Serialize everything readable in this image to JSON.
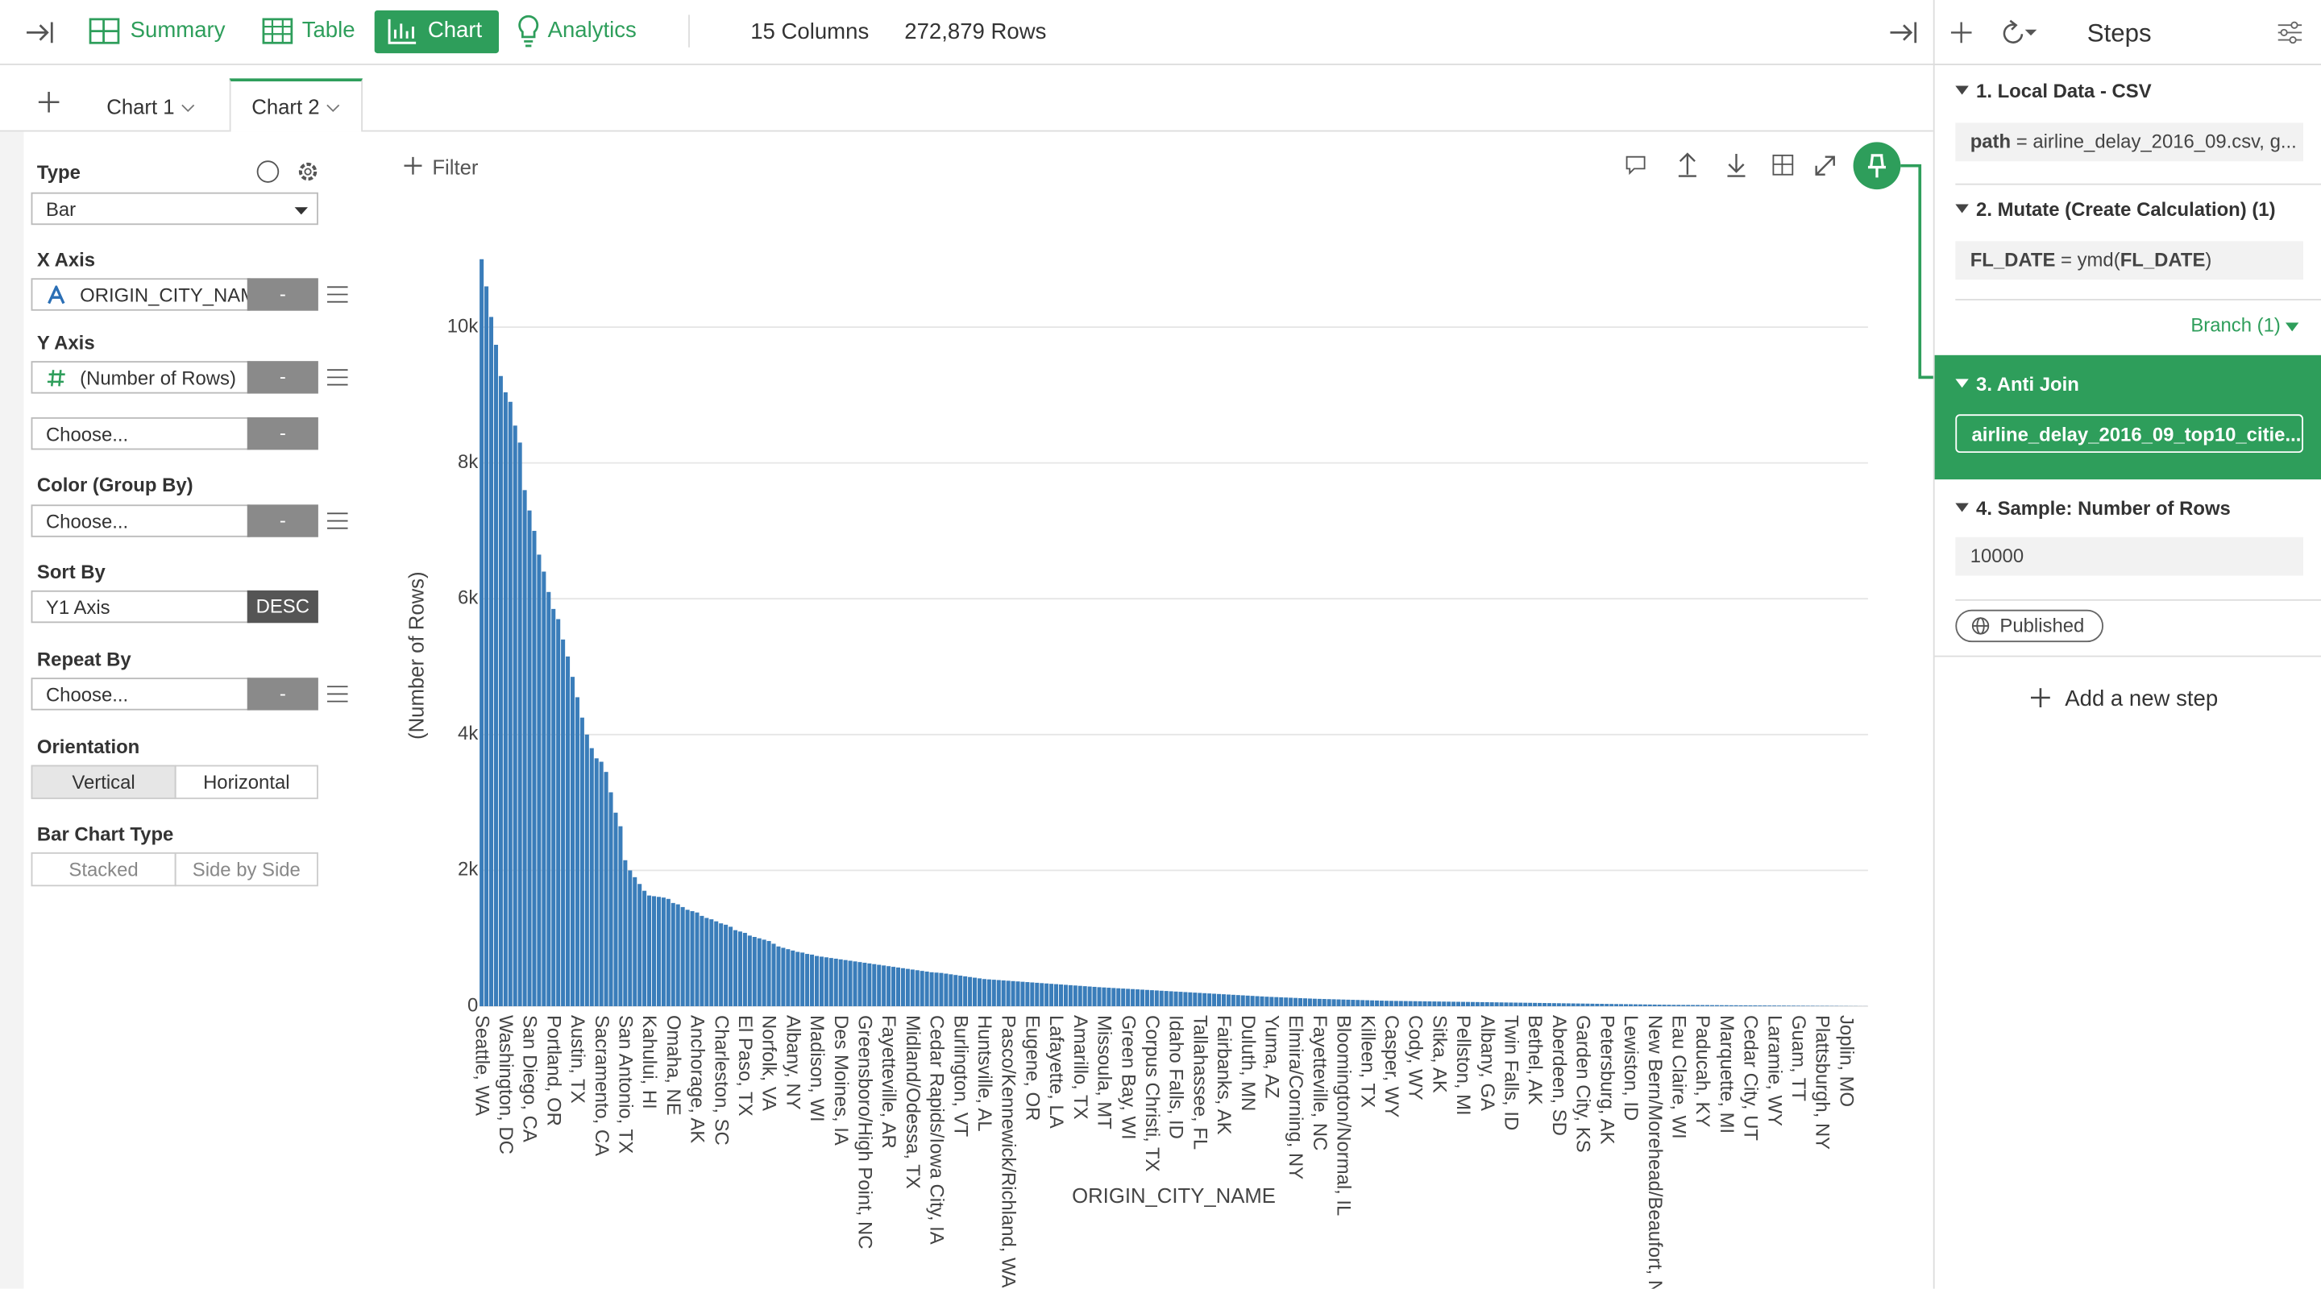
{
  "toolbar": {
    "tabs": [
      "Summary",
      "Table",
      "Chart",
      "Analytics"
    ],
    "columns": "15 Columns",
    "rows": "272,879 Rows"
  },
  "chart_tabs": [
    "Chart 1",
    "Chart 2"
  ],
  "filter": "Filter",
  "config": {
    "type_label": "Type",
    "type_value": "Bar",
    "x_axis_label": "X Axis",
    "x_axis_value": "ORIGIN_CITY_NAME",
    "y_axis_label": "Y Axis",
    "y_axis_value": "(Number of Rows)",
    "choose": "Choose...",
    "remove": "-",
    "color_label": "Color (Group By)",
    "sort_label": "Sort By",
    "sort_value": "Y1 Axis",
    "sort_order": "DESC",
    "repeat_label": "Repeat By",
    "orientation_label": "Orientation",
    "orientation_options": [
      "Vertical",
      "Horizontal"
    ],
    "bar_type_label": "Bar Chart Type",
    "bar_type_options": [
      "Stacked",
      "Side by Side"
    ]
  },
  "steps": {
    "title": "Steps",
    "items": [
      {
        "title": "1. Local Data - CSV",
        "key": "path",
        "body": " = airline_delay_2016_09.csv, g..."
      },
      {
        "title": "2. Mutate (Create Calculation) (1)",
        "key": "FL_DATE",
        "body": " = ymd(",
        "arg": "FL_DATE",
        "close": ")"
      },
      {
        "title": "3. Anti Join",
        "body": "airline_delay_2016_09_top10_citie..."
      },
      {
        "title": "4. Sample: Number of Rows",
        "body": "10000"
      }
    ],
    "branch": "Branch (1)",
    "published": "Published",
    "add_step": "Add a new step"
  },
  "chart_data": {
    "type": "bar",
    "x_label": "ORIGIN_CITY_NAME",
    "y_label": "(Number of Rows)",
    "color": "#3a7dba",
    "grid": true,
    "ylim": [
      0,
      11200
    ],
    "yticks": [
      0,
      {
        "value": 2000,
        "label": "2k"
      },
      {
        "value": 4000,
        "label": "4k"
      },
      {
        "value": 6000,
        "label": "6k"
      },
      {
        "value": 8000,
        "label": "8k"
      },
      {
        "value": 10000,
        "label": "10k"
      }
    ],
    "categories": [
      "Seattle, WA",
      null,
      null,
      null,
      null,
      "Washington, DC",
      null,
      null,
      null,
      null,
      "San Diego, CA",
      null,
      null,
      null,
      null,
      "Portland, OR",
      null,
      null,
      null,
      null,
      "Austin, TX",
      null,
      null,
      null,
      null,
      "Sacramento, CA",
      null,
      null,
      null,
      null,
      "San Antonio, TX",
      null,
      null,
      null,
      null,
      "Kahului, HI",
      null,
      null,
      null,
      null,
      "Omaha, NE",
      null,
      null,
      null,
      null,
      "Anchorage, AK",
      null,
      null,
      null,
      null,
      "Charleston, SC",
      null,
      null,
      null,
      null,
      "El Paso, TX",
      null,
      null,
      null,
      null,
      "Norfolk, VA",
      null,
      null,
      null,
      null,
      "Albany, NY",
      null,
      null,
      null,
      null,
      "Madison, WI",
      null,
      null,
      null,
      null,
      "Des Moines, IA",
      null,
      null,
      null,
      null,
      "Greensboro/High Point, NC",
      null,
      null,
      null,
      null,
      "Fayetteville, AR",
      null,
      null,
      null,
      null,
      "Midland/Odessa, TX",
      null,
      null,
      null,
      null,
      "Cedar Rapids/Iowa City, IA",
      null,
      null,
      null,
      null,
      "Burlington, VT",
      null,
      null,
      null,
      null,
      "Huntsville, AL",
      null,
      null,
      null,
      null,
      "Pasco/Kennewick/Richland, WA",
      null,
      null,
      null,
      null,
      "Eugene, OR",
      null,
      null,
      null,
      null,
      "Lafayette, LA",
      null,
      null,
      null,
      null,
      "Amarillo, TX",
      null,
      null,
      null,
      null,
      "Missoula, MT",
      null,
      null,
      null,
      null,
      "Green Bay, WI",
      null,
      null,
      null,
      null,
      "Corpus Christi, TX",
      null,
      null,
      null,
      null,
      "Idaho Falls, ID",
      null,
      null,
      null,
      null,
      "Tallahassee, FL",
      null,
      null,
      null,
      null,
      "Fairbanks, AK",
      null,
      null,
      null,
      null,
      "Duluth, MN",
      null,
      null,
      null,
      null,
      "Yuma, AZ",
      null,
      null,
      null,
      null,
      "Elmira/Corning, NY",
      null,
      null,
      null,
      null,
      "Fayetteville, NC",
      null,
      null,
      null,
      null,
      "Bloomington/Normal, IL",
      null,
      null,
      null,
      null,
      "Killeen, TX",
      null,
      null,
      null,
      null,
      "Casper, WY",
      null,
      null,
      null,
      null,
      "Cody, WY",
      null,
      null,
      null,
      null,
      "Sitka, AK",
      null,
      null,
      null,
      null,
      "Pellston, MI",
      null,
      null,
      null,
      null,
      "Albany, GA",
      null,
      null,
      null,
      null,
      "Twin Falls, ID",
      null,
      null,
      null,
      null,
      "Bethel, AK",
      null,
      null,
      null,
      null,
      "Aberdeen, SD",
      null,
      null,
      null,
      null,
      "Garden City, KS",
      null,
      null,
      null,
      null,
      "Petersburg, AK",
      null,
      null,
      null,
      null,
      "Lewiston, ID",
      null,
      null,
      null,
      null,
      "New Bern/Morehead/Beaufort, NC",
      null,
      null,
      null,
      null,
      "Eau Claire, WI",
      null,
      null,
      null,
      null,
      "Paducah, KY",
      null,
      null,
      null,
      null,
      "Marquette, MI",
      null,
      null,
      null,
      null,
      "Cedar City, UT",
      null,
      null,
      null,
      null,
      "Laramie, WY",
      null,
      null,
      null,
      null,
      "Guam, TT",
      null,
      null,
      null,
      null,
      "Plattsburgh, NY",
      null,
      null,
      null,
      null,
      "Joplin, MO",
      null,
      null,
      null,
      null
    ],
    "values": [
      11000,
      10600,
      10150,
      9740,
      9280,
      9040,
      8900,
      8550,
      8300,
      7600,
      7300,
      7000,
      6650,
      6400,
      6100,
      5850,
      5700,
      5400,
      5150,
      4850,
      4550,
      4250,
      4000,
      3800,
      3650,
      3600,
      3450,
      3150,
      2850,
      2650,
      2150,
      2000,
      1900,
      1800,
      1700,
      1630,
      1620,
      1610,
      1600,
      1580,
      1520,
      1500,
      1460,
      1420,
      1400,
      1380,
      1330,
      1300,
      1280,
      1250,
      1220,
      1200,
      1170,
      1120,
      1100,
      1080,
      1040,
      1020,
      1000,
      980,
      960,
      920,
      880,
      860,
      840,
      820,
      800,
      790,
      770,
      760,
      740,
      730,
      720,
      710,
      700,
      690,
      680,
      670,
      660,
      650,
      640,
      630,
      620,
      610,
      600,
      590,
      580,
      570,
      560,
      550,
      540,
      530,
      520,
      510,
      500,
      495,
      490,
      480,
      470,
      460,
      450,
      440,
      430,
      420,
      410,
      400,
      395,
      390,
      385,
      380,
      375,
      370,
      365,
      360,
      355,
      350,
      345,
      340,
      335,
      330,
      325,
      320,
      315,
      310,
      305,
      300,
      295,
      290,
      285,
      280,
      276,
      272,
      268,
      264,
      260,
      256,
      252,
      248,
      244,
      240,
      236,
      232,
      228,
      224,
      220,
      216,
      212,
      208,
      204,
      200,
      196,
      192,
      188,
      184,
      180,
      176,
      172,
      168,
      164,
      160,
      156,
      152,
      148,
      144,
      140,
      137,
      134,
      131,
      128,
      125,
      122,
      119,
      116,
      113,
      110,
      108,
      106,
      104,
      102,
      100,
      98,
      96,
      94,
      92,
      90,
      88,
      86,
      84,
      82,
      80,
      79,
      78,
      77,
      76,
      75,
      74,
      73,
      72,
      71,
      70,
      69,
      68,
      67,
      66,
      65,
      64,
      63,
      62,
      61,
      60,
      59,
      58,
      57,
      56,
      55,
      54,
      53,
      52,
      51,
      50,
      49,
      48,
      47,
      46,
      45,
      44,
      43,
      42,
      41,
      40,
      39,
      38,
      37,
      36,
      35,
      34,
      33,
      32,
      31,
      30,
      29,
      28,
      27,
      26,
      25,
      24,
      23,
      22,
      21,
      20,
      20,
      19,
      19,
      18,
      18,
      17,
      17,
      16,
      16,
      15,
      15,
      14,
      14,
      13,
      13,
      12,
      12,
      11,
      11,
      10,
      10,
      9,
      9,
      8,
      8,
      7,
      7,
      6,
      6,
      5,
      5,
      5,
      4,
      4,
      3,
      3,
      2,
      2,
      1,
      1
    ]
  }
}
